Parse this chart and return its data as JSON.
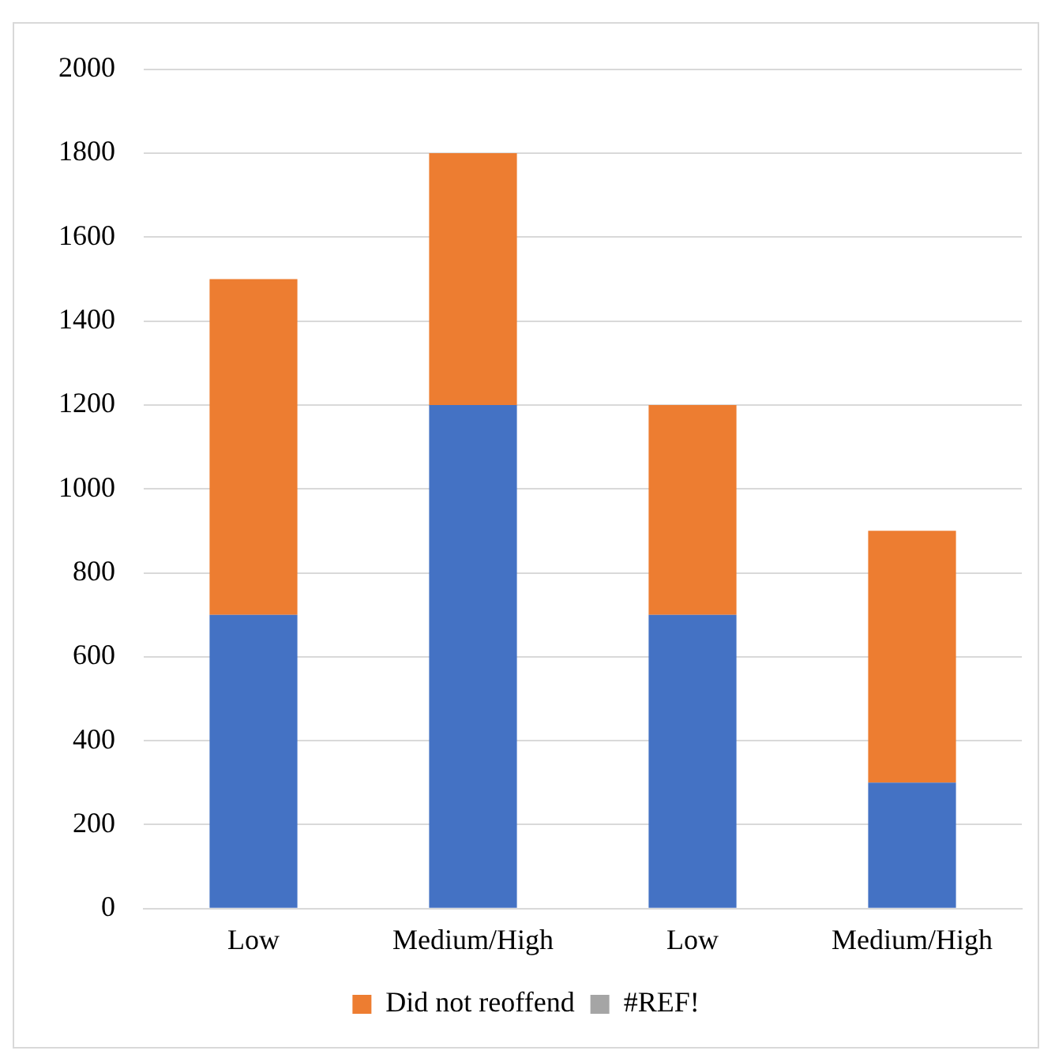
{
  "chart_data": {
    "type": "bar",
    "stacked": true,
    "categories": [
      "Low",
      "Medium/High",
      "Low",
      "Medium/High"
    ],
    "series": [
      {
        "color": "#4472c4",
        "values": [
          700,
          1200,
          700,
          300
        ]
      },
      {
        "name": "Did not reoffend",
        "color": "#ed7d31",
        "values": [
          800,
          600,
          500,
          600
        ]
      },
      {
        "name": "#REF!",
        "color": "#a5a5a5",
        "values": [
          null,
          null,
          null,
          null
        ]
      }
    ],
    "ylim": [
      0,
      2000
    ],
    "yticks": [
      0,
      200,
      400,
      600,
      800,
      1000,
      1200,
      1400,
      1600,
      1800,
      2000
    ],
    "grid": "y",
    "legend": "bottom"
  }
}
